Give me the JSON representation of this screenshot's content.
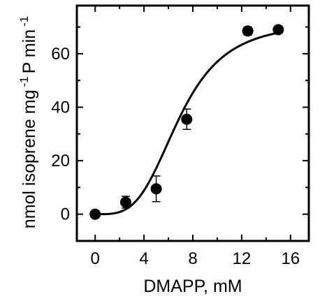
{
  "chart_data": {
    "type": "scatter",
    "xlabel": "DMAPP, mM",
    "ylabel": {
      "part1": "nmol isoprene mg",
      "sup1": "-1",
      "part2": " P min",
      "sup2": "-1"
    },
    "xlim": [
      -1.5,
      17.5
    ],
    "ylim": [
      -10,
      78
    ],
    "xticks": [
      0,
      4,
      8,
      12,
      16
    ],
    "yticks": [
      0,
      20,
      40,
      60
    ],
    "grid": false,
    "points": [
      {
        "x": 0,
        "y": 0,
        "err": 0
      },
      {
        "x": 2.5,
        "y": 4.5,
        "err": 2.2
      },
      {
        "x": 5,
        "y": 9.5,
        "err": 4.8
      },
      {
        "x": 7.5,
        "y": 35.5,
        "err": 3.8
      },
      {
        "x": 12.5,
        "y": 68.5,
        "err": 1.5
      },
      {
        "x": 15,
        "y": 69,
        "err": 1.2
      }
    ],
    "fit": {
      "type": "sigmoid",
      "vmax": 72,
      "k_half": 6.9,
      "hill": 3.6,
      "x_range": [
        0,
        15
      ]
    }
  }
}
